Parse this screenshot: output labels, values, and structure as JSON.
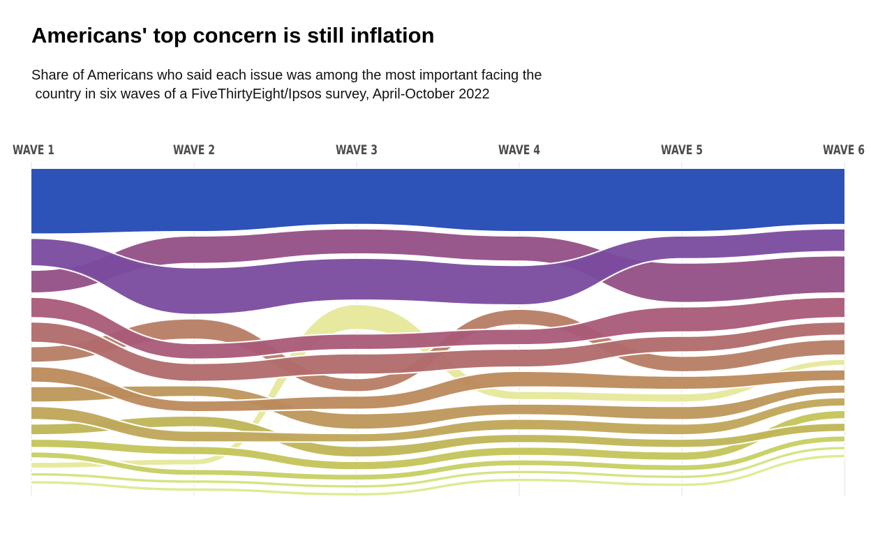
{
  "title": "Americans' top concern is still inflation",
  "subtitle_lines": [
    "Share of Americans who said each issue was among the most important facing the",
    " country in six waves of a FiveThirtyEight/Ipsos survey, April-October 2022"
  ],
  "chart_data": {
    "type": "bump-area",
    "title": "Americans' top concern is still inflation",
    "x": [
      "WAVE 1",
      "WAVE 2",
      "WAVE 3",
      "WAVE 4",
      "WAVE 5",
      "WAVE 6"
    ],
    "series": [
      {
        "values": [
          13.5,
          13.0,
          11.5,
          13.0,
          13.0,
          11.5
        ],
        "color": "#2249b4"
      },
      {
        "values": [
          5.5,
          9.5,
          8.5,
          8.0,
          4.5,
          4.5
        ],
        "color": "#7a4b9e"
      },
      {
        "values": [
          4.5,
          5.5,
          5.0,
          5.0,
          8.0,
          7.5
        ],
        "color": "#944f86"
      },
      {
        "values": [
          4.0,
          3.0,
          3.0,
          3.0,
          5.0,
          4.0
        ],
        "color": "#a95a78"
      },
      {
        "values": [
          4.0,
          3.5,
          4.0,
          3.5,
          3.0,
          2.5
        ],
        "color": "#b06a6c"
      },
      {
        "values": [
          3.0,
          4.0,
          2.5,
          3.0,
          3.0,
          3.0
        ],
        "color": "#b67d64"
      },
      {
        "values": [
          3.0,
          2.0,
          2.5,
          3.0,
          2.5,
          2.0
        ],
        "color": "#ba8a5c"
      },
      {
        "values": [
          3.0,
          2.0,
          3.0,
          2.0,
          2.5,
          1.5
        ],
        "color": "#bd975a"
      },
      {
        "values": [
          2.5,
          2.0,
          1.5,
          2.0,
          2.0,
          1.5
        ],
        "color": "#bfa658"
      },
      {
        "values": [
          2.0,
          2.0,
          2.0,
          1.5,
          1.5,
          1.5
        ],
        "color": "#bfb556"
      },
      {
        "values": [
          1.5,
          1.5,
          1.5,
          1.5,
          1.5,
          1.5
        ],
        "color": "#c4c45a"
      },
      {
        "values": [
          1.0,
          1.0,
          1.0,
          1.0,
          1.0,
          1.0
        ],
        "color": "#c6cf62"
      },
      {
        "values": [
          1.0,
          1.0,
          5.0,
          1.5,
          1.5,
          1.0
        ],
        "color": "#e6e89a"
      },
      {
        "values": [
          0.5,
          0.5,
          0.5,
          0.5,
          0.5,
          0.5
        ],
        "color": "#d4e27c"
      },
      {
        "values": [
          0.5,
          0.5,
          0.5,
          0.5,
          0.5,
          0.5
        ],
        "color": "#dcea8c"
      }
    ],
    "ranks": [
      [
        1,
        1,
        1,
        1,
        1,
        1
      ],
      [
        2,
        3,
        3,
        3,
        2,
        2
      ],
      [
        3,
        2,
        2,
        2,
        3,
        3
      ],
      [
        4,
        5,
        5,
        5,
        4,
        4
      ],
      [
        5,
        6,
        6,
        6,
        5,
        5
      ],
      [
        6,
        4,
        7,
        4,
        6,
        6
      ],
      [
        7,
        8,
        8,
        7,
        7,
        8
      ],
      [
        8,
        7,
        9,
        9,
        9,
        9
      ],
      [
        9,
        10,
        10,
        10,
        10,
        10
      ],
      [
        10,
        9,
        11,
        11,
        11,
        12
      ],
      [
        11,
        11,
        12,
        12,
        12,
        11
      ],
      [
        12,
        13,
        13,
        13,
        13,
        13
      ],
      [
        13,
        12,
        4,
        8,
        8,
        7
      ],
      [
        14,
        14,
        14,
        14,
        14,
        14
      ],
      [
        15,
        15,
        15,
        15,
        15,
        15
      ]
    ]
  }
}
